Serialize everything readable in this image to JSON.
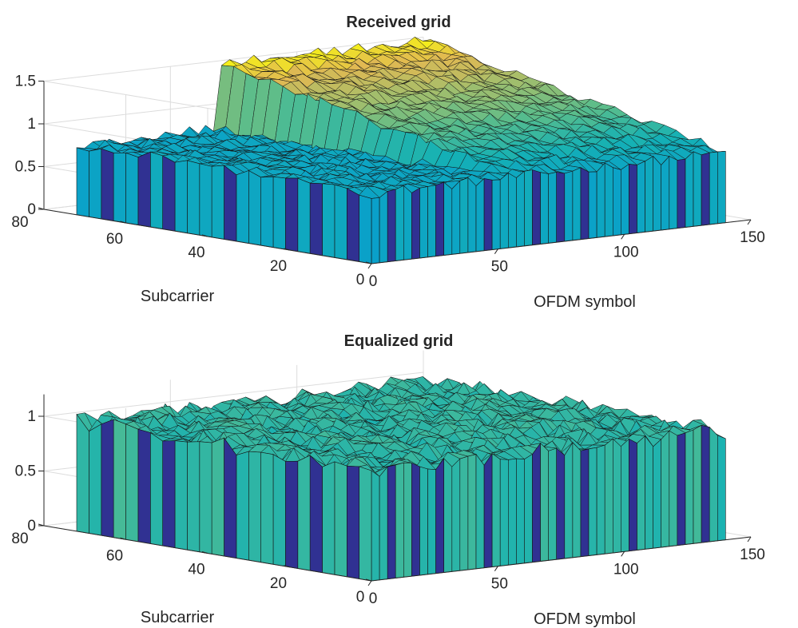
{
  "chart_data": [
    {
      "type": "surface",
      "title": "Received grid",
      "xlabel": "OFDM symbol",
      "ylabel": "Subcarrier",
      "zlabel": "",
      "xlim": [
        0,
        150
      ],
      "ylim": [
        0,
        80
      ],
      "zlim": [
        0,
        1.5
      ],
      "x_ticks": [
        0,
        50,
        100,
        150
      ],
      "y_ticks": [
        0,
        20,
        40,
        60,
        80
      ],
      "z_ticks": [
        0,
        0.5,
        1,
        1.5
      ],
      "x_tick_labels": [
        "0",
        "50",
        "100",
        "150"
      ],
      "y_tick_labels": [
        "0",
        "20",
        "40",
        "60",
        "80"
      ],
      "z_tick_labels": [
        "0",
        "0.5",
        "1",
        "1.5"
      ],
      "grid": true,
      "colormap": "parula",
      "data_extent": {
        "x": [
          0,
          140
        ],
        "y": [
          0,
          72
        ]
      },
      "profile": "Magnitude about 0.8 for OFDM symbols 0–56, then rising across subcarriers from about 0.8 (subcarrier 0) to about 1.6 (subcarrier 72) for symbols 56–140; noisy with periodic near-zero columns"
    },
    {
      "type": "surface",
      "title": "Equalized grid",
      "xlabel": "OFDM symbol",
      "ylabel": "Subcarrier",
      "zlabel": "",
      "xlim": [
        0,
        150
      ],
      "ylim": [
        0,
        80
      ],
      "zlim": [
        0,
        1.2
      ],
      "x_ticks": [
        0,
        50,
        100,
        150
      ],
      "y_ticks": [
        0,
        20,
        40,
        60,
        80
      ],
      "z_ticks": [
        0,
        0.5,
        1
      ],
      "x_tick_labels": [
        "0",
        "50",
        "100",
        "150"
      ],
      "y_tick_labels": [
        "0",
        "20",
        "40",
        "60",
        "80"
      ],
      "z_tick_labels": [
        "0",
        "0.5",
        "1"
      ],
      "grid": true,
      "colormap": "parula",
      "data_extent": {
        "x": [
          0,
          140
        ],
        "y": [
          0,
          72
        ]
      },
      "profile": "Magnitude about 1.0 everywhere with noise; periodic near-zero columns"
    }
  ],
  "colors": {
    "text": "#262626",
    "grid": "#dcdcdc",
    "mesh_edge": "#141414",
    "low": "#352a87",
    "high": "#e9ba30"
  }
}
